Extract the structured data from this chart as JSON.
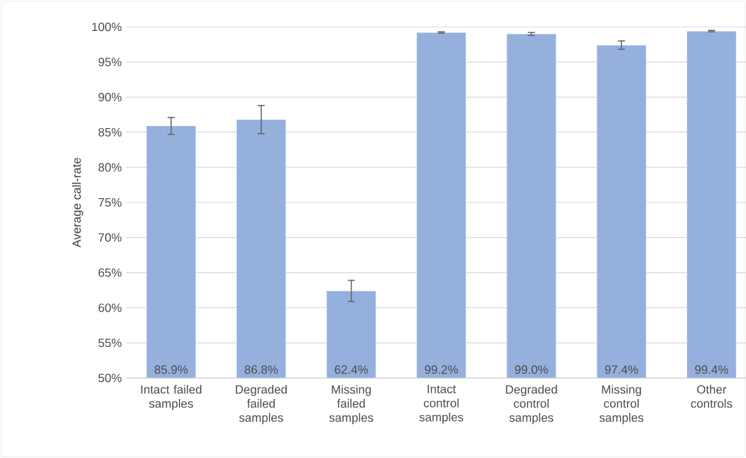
{
  "chart_data": {
    "type": "bar",
    "ylabel": "Average call-rate",
    "categories": [
      "Intact failed samples",
      "Degraded failed samples",
      "Missing failed samples",
      "Intact control samples",
      "Degraded control samples",
      "Missing control samples",
      "Other controls"
    ],
    "values": [
      85.9,
      86.8,
      62.4,
      99.2,
      99.0,
      97.4,
      99.4
    ],
    "errors": [
      1.2,
      2.0,
      1.5,
      0.1,
      0.2,
      0.6,
      0.1
    ],
    "value_labels": [
      "85.9%",
      "86.8%",
      "62.4%",
      "99.2%",
      "99.0%",
      "97.4%",
      "99.4%"
    ],
    "color": "#95b0dd",
    "ylim": [
      50,
      100
    ],
    "yticks": [
      {
        "value": 50,
        "label": "50%"
      },
      {
        "value": 55,
        "label": "55%"
      },
      {
        "value": 60,
        "label": "60%"
      },
      {
        "value": 65,
        "label": "65%"
      },
      {
        "value": 70,
        "label": "70%"
      },
      {
        "value": 75,
        "label": "75%"
      },
      {
        "value": 80,
        "label": "80%"
      },
      {
        "value": 85,
        "label": "85%"
      },
      {
        "value": 90,
        "label": "90%"
      },
      {
        "value": 95,
        "label": "95%"
      },
      {
        "value": 100,
        "label": "100%"
      }
    ],
    "grid": "y"
  }
}
